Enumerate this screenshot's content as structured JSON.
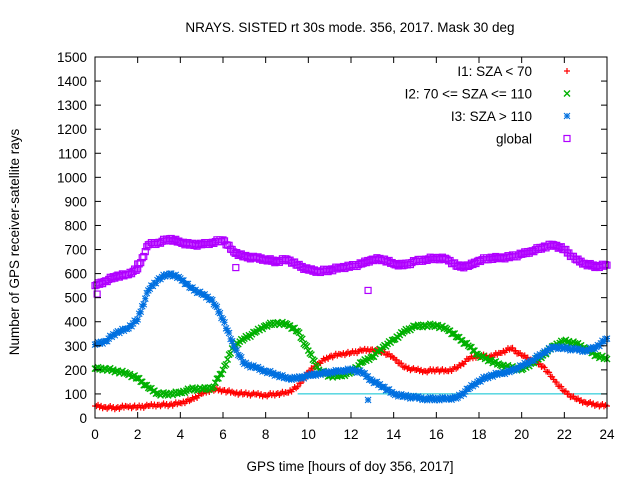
{
  "chart_data": {
    "type": "scatter",
    "title": "NRAYS. SISTED rt 30s mode. 356, 2017. Mask 30 deg",
    "xlabel": "GPS time [hours of doy 356, 2017]",
    "ylabel": "Number of GPS receiver-satellite rays",
    "xlim": [
      0,
      24
    ],
    "ylim": [
      0,
      1500
    ],
    "x_ticks": [
      0,
      2,
      4,
      6,
      8,
      10,
      12,
      14,
      16,
      18,
      20,
      22,
      24
    ],
    "y_ticks": [
      0,
      100,
      200,
      300,
      400,
      500,
      600,
      700,
      800,
      900,
      1000,
      1100,
      1200,
      1300,
      1400,
      1500
    ],
    "legend_position": "top-right",
    "reference_line": {
      "y": 100,
      "color": "#00c0d0"
    },
    "series": [
      {
        "name": "I1: SZA < 70",
        "marker": "plus",
        "color": "#ff0000",
        "x": [
          0,
          0.5,
          1,
          1.5,
          2,
          2.5,
          3,
          3.5,
          4,
          4.5,
          5,
          5.5,
          6,
          6.5,
          7,
          7.5,
          8,
          8.5,
          9,
          9.5,
          10,
          10.5,
          11,
          11.5,
          12,
          12.5,
          13,
          13.5,
          14,
          14.5,
          15,
          15.5,
          16,
          16.5,
          17,
          17.5,
          18,
          18.5,
          19,
          19.5,
          20,
          20.5,
          21,
          21.5,
          22,
          22.5,
          23,
          23.5,
          24
        ],
        "values": [
          50,
          45,
          42,
          48,
          45,
          50,
          55,
          55,
          62,
          75,
          100,
          120,
          115,
          105,
          100,
          98,
          95,
          100,
          105,
          130,
          190,
          230,
          255,
          265,
          270,
          280,
          285,
          275,
          250,
          210,
          200,
          195,
          200,
          195,
          210,
          245,
          260,
          255,
          270,
          290,
          260,
          240,
          215,
          160,
          110,
          80,
          65,
          55,
          50
        ]
      },
      {
        "name": "I2: 70 <= SZA <= 110",
        "marker": "cross",
        "color": "#00b000",
        "x": [
          0,
          0.5,
          1,
          1.5,
          2,
          2.5,
          3,
          3.5,
          4,
          4.5,
          5,
          5.5,
          6,
          6.5,
          7,
          7.5,
          8,
          8.5,
          9,
          9.5,
          10,
          10.5,
          11,
          11.5,
          12,
          12.5,
          13,
          13.5,
          14,
          14.5,
          15,
          15.5,
          16,
          16.5,
          17,
          17.5,
          18,
          18.5,
          19,
          19.5,
          20,
          20.5,
          21,
          21.5,
          22,
          22.5,
          23,
          23.5,
          24
        ],
        "values": [
          205,
          205,
          195,
          185,
          165,
          125,
          100,
          100,
          105,
          120,
          120,
          125,
          200,
          300,
          330,
          355,
          385,
          395,
          390,
          360,
          280,
          200,
          175,
          175,
          190,
          230,
          255,
          295,
          325,
          360,
          380,
          385,
          385,
          370,
          335,
          300,
          260,
          240,
          220,
          210,
          200,
          230,
          260,
          300,
          320,
          310,
          290,
          260,
          245
        ]
      },
      {
        "name": "I3: SZA > 110",
        "marker": "star",
        "color": "#0070e0",
        "x": [
          0,
          0.5,
          1,
          1.5,
          2,
          2.5,
          3,
          3.5,
          4,
          4.5,
          5,
          5.5,
          6,
          6.5,
          7,
          7.5,
          8,
          8.5,
          9,
          9.5,
          10,
          10.5,
          11,
          11.5,
          12,
          12.5,
          13,
          13.5,
          14,
          14.5,
          15,
          15.5,
          16,
          16.5,
          17,
          17.5,
          18,
          18.5,
          19,
          19.5,
          20,
          20.5,
          21,
          21.5,
          22,
          22.5,
          23,
          23.5,
          24
        ],
        "values": [
          305,
          320,
          355,
          370,
          410,
          530,
          580,
          600,
          580,
          540,
          515,
          490,
          410,
          300,
          225,
          210,
          195,
          180,
          165,
          165,
          175,
          185,
          190,
          195,
          200,
          190,
          155,
          130,
          100,
          90,
          85,
          80,
          80,
          80,
          85,
          120,
          155,
          175,
          185,
          195,
          215,
          240,
          270,
          295,
          290,
          285,
          280,
          295,
          330
        ],
        "outliers": [
          [
            12.8,
            75
          ]
        ]
      },
      {
        "name": "global",
        "marker": "square",
        "color": "#b000ff",
        "x": [
          0,
          0.5,
          1,
          1.5,
          2,
          2.5,
          3,
          3.5,
          4,
          4.5,
          5,
          5.5,
          6,
          6.5,
          7,
          7.5,
          8,
          8.5,
          9,
          9.5,
          10,
          10.5,
          11,
          11.5,
          12,
          12.5,
          13,
          13.5,
          14,
          14.5,
          15,
          15.5,
          16,
          16.5,
          17,
          17.5,
          18,
          18.5,
          19,
          19.5,
          20,
          20.5,
          21,
          21.5,
          22,
          22.5,
          23,
          23.5,
          24
        ],
        "values": [
          550,
          570,
          590,
          595,
          620,
          720,
          730,
          745,
          730,
          720,
          720,
          730,
          740,
          690,
          670,
          665,
          660,
          650,
          660,
          635,
          615,
          610,
          615,
          625,
          630,
          640,
          660,
          660,
          640,
          635,
          650,
          660,
          665,
          660,
          630,
          630,
          655,
          665,
          665,
          670,
          680,
          695,
          710,
          720,
          700,
          660,
          640,
          630,
          635
        ],
        "outliers": [
          [
            12.8,
            530
          ],
          [
            0.1,
            515
          ],
          [
            2.0,
            640
          ],
          [
            6.6,
            625
          ]
        ]
      }
    ]
  }
}
